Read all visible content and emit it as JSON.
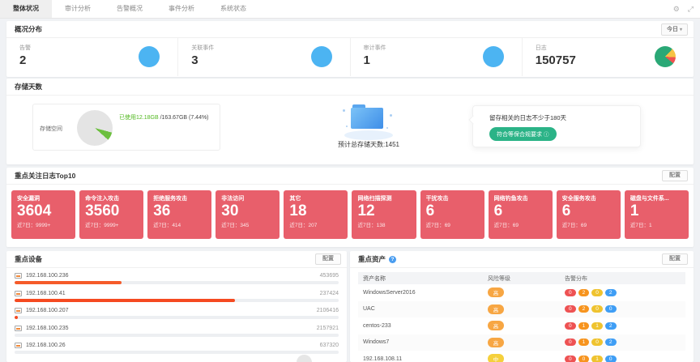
{
  "tabs": {
    "items": [
      "整体状况",
      "审计分析",
      "告警概况",
      "事件分析",
      "系统状态"
    ],
    "active": "整体状况"
  },
  "window_icons": {
    "gear": "⚙",
    "fullscreen": "⤢"
  },
  "overview": {
    "title": "概况分布",
    "range_selector": "今日",
    "dropdown_arrow": "▾",
    "stats": [
      {
        "label": "告警",
        "value": "2"
      },
      {
        "label": "关联事件",
        "value": "3"
      },
      {
        "label": "审计事件",
        "value": "1"
      },
      {
        "label": "日志",
        "value": "150757"
      }
    ],
    "accent_blue": "#4cb4f2",
    "log_pie_colors": [
      "#2aa876",
      "#f6c344",
      "#ef5350"
    ]
  },
  "storage": {
    "title": "存储天数",
    "space_label": "存储空间",
    "used_text": "已使用12.18GB",
    "total_text": "/163.67GB (7.44%)",
    "used_percent": 7.44,
    "used_color": "#52b820",
    "days_text": "预计总存储天数:1451",
    "notice_text": "留存相关的日志不少于180天",
    "compliance_label": "符合等保合规要求",
    "info_icon": "ⓘ",
    "compliance_color": "#2bb387"
  },
  "top_logs": {
    "title": "重点关注日志Top10",
    "config_label": "配置",
    "recent_label": "近7日：",
    "card_color": "#e85f6b",
    "cards": [
      {
        "name": "安全漏洞",
        "value": "3604",
        "recent": "9999+"
      },
      {
        "name": "命令注入攻击",
        "value": "3560",
        "recent": "9999+"
      },
      {
        "name": "拒绝服务攻击",
        "value": "36",
        "recent": "414"
      },
      {
        "name": "非法访问",
        "value": "30",
        "recent": "345"
      },
      {
        "name": "其它",
        "value": "18",
        "recent": "207"
      },
      {
        "name": "网络扫描探测",
        "value": "12",
        "recent": "138"
      },
      {
        "name": "干扰攻击",
        "value": "6",
        "recent": "69"
      },
      {
        "name": "网络钓鱼攻击",
        "value": "6",
        "recent": "69"
      },
      {
        "name": "安全服务攻击",
        "value": "6",
        "recent": "69"
      },
      {
        "name": "磁盘与文件系...",
        "value": "1",
        "recent": "1"
      }
    ]
  },
  "devices": {
    "title": "重点设备",
    "config_label": "配置",
    "rows": [
      {
        "ip": "192.168.100.236",
        "value": "453695",
        "bar": 33,
        "color": "#f55b2a"
      },
      {
        "ip": "192.168.100.41",
        "value": "237424",
        "bar": 68,
        "color": "#f54a21"
      },
      {
        "ip": "192.168.100.207",
        "value": "2106416",
        "bar": 1,
        "color": "#f54a21"
      },
      {
        "ip": "192.168.100.235",
        "value": "2157921",
        "bar": 0,
        "color": "#f54a21"
      },
      {
        "ip": "192.168.100.26",
        "value": "637320",
        "bar": 0,
        "color": "#f54a21"
      }
    ]
  },
  "assets": {
    "title": "重点资产",
    "help_icon": "?",
    "config_label": "配置",
    "columns": [
      "资产名称",
      "风险等级",
      "告警分布"
    ],
    "alert_colors": [
      "#ee5253",
      "#f7941e",
      "#efc32f",
      "#3f9ef5"
    ],
    "rows": [
      {
        "name": "WindowsServer2016",
        "risk": "高",
        "risk_color": "#f7a643",
        "alerts": [
          "0",
          "2",
          "0",
          "2"
        ]
      },
      {
        "name": "UAC",
        "risk": "高",
        "risk_color": "#f7a643",
        "alerts": [
          "0",
          "2",
          "0",
          "0"
        ]
      },
      {
        "name": "centos-233",
        "risk": "高",
        "risk_color": "#f7a643",
        "alerts": [
          "0",
          "1",
          "1",
          "2"
        ]
      },
      {
        "name": "Windows7",
        "risk": "高",
        "risk_color": "#f7a643",
        "alerts": [
          "0",
          "1",
          "0",
          "2"
        ]
      },
      {
        "name": "192.168.108.11",
        "risk": "中",
        "risk_color": "#f5d03c",
        "alerts": [
          "0",
          "0",
          "1",
          "0"
        ]
      }
    ]
  }
}
